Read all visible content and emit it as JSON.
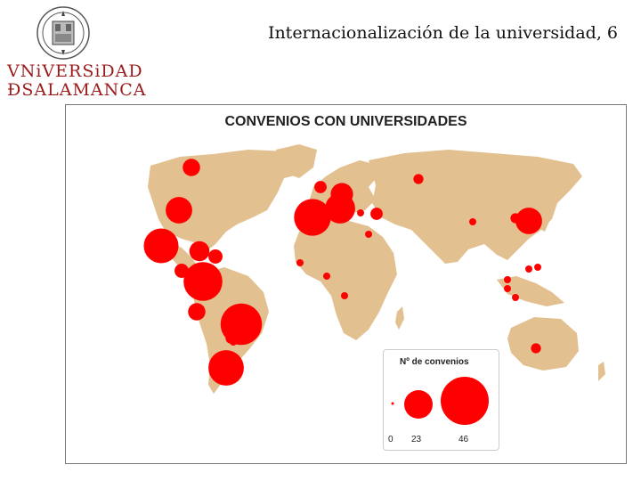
{
  "header": {
    "title": "Internacionalización de la universidad, 6",
    "logo_line1": "VNiVERSiDAD",
    "logo_line2": "ÐSALAMANCA"
  },
  "map": {
    "title": "CONVENIOS CON UNIVERSIDADES",
    "land_color": "#e3c08f",
    "marker_color": "#ff0000",
    "legend": {
      "title": "Nº de convenios",
      "labels": [
        "0",
        "23",
        "46"
      ]
    },
    "markers": [
      {
        "name": "Canada",
        "size": 6
      },
      {
        "name": "Northeast USA",
        "size": 14
      },
      {
        "name": "Southwest USA",
        "size": 24
      },
      {
        "name": "Southeast USA",
        "size": 8
      },
      {
        "name": "Cuba",
        "size": 4
      },
      {
        "name": "Central America",
        "size": 4
      },
      {
        "name": "Colombia",
        "size": 30
      },
      {
        "name": "Peru",
        "size": 6
      },
      {
        "name": "Brazil",
        "size": 34
      },
      {
        "name": "Bolivia",
        "size": 2
      },
      {
        "name": "Paraguay",
        "size": 1
      },
      {
        "name": "Chile Argentina",
        "size": 25
      },
      {
        "name": "UK",
        "size": 3
      },
      {
        "name": "Germany",
        "size": 10
      },
      {
        "name": "Spain Portugal",
        "size": 27
      },
      {
        "name": "France Italy",
        "size": 18
      },
      {
        "name": "Greece",
        "size": 1
      },
      {
        "name": "Turkey",
        "size": 3
      },
      {
        "name": "Russia",
        "size": 2
      },
      {
        "name": "Egypt",
        "size": 1
      },
      {
        "name": "Morocco",
        "size": 1
      },
      {
        "name": "West Africa",
        "size": 1
      },
      {
        "name": "Nigeria",
        "size": 1
      },
      {
        "name": "China",
        "size": 1
      },
      {
        "name": "Korea",
        "size": 2
      },
      {
        "name": "Japan",
        "size": 14
      },
      {
        "name": "Taiwan",
        "size": 1
      },
      {
        "name": "Philippines",
        "size": 1
      },
      {
        "name": "Southeast Asia",
        "size": 1
      },
      {
        "name": "Malaysia",
        "size": 1
      },
      {
        "name": "Indonesia",
        "size": 1
      },
      {
        "name": "Australia",
        "size": 2
      }
    ]
  }
}
